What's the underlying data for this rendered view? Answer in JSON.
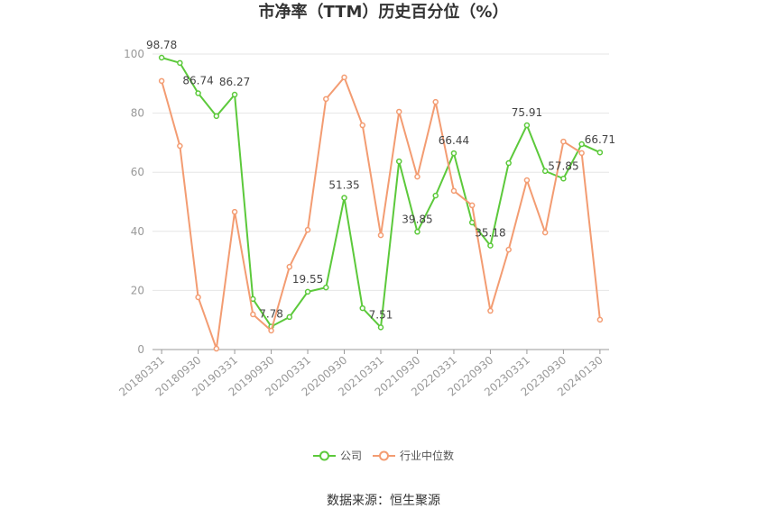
{
  "chart_data": {
    "type": "line",
    "title": "市净率（TTM）历史百分位（%）",
    "xlabel": "",
    "ylabel": "",
    "ylim": [
      0,
      100
    ],
    "yticks": [
      0,
      20,
      40,
      60,
      80,
      100
    ],
    "grid": true,
    "legend": "bottom-center",
    "categories": [
      "20180331",
      "",
      "20180930",
      "",
      "20190331",
      "",
      "20190930",
      "",
      "20200331",
      "",
      "20200930",
      "",
      "20210331",
      "",
      "20210930",
      "",
      "20220331",
      "",
      "20220930",
      "",
      "20230331",
      "",
      "20230930",
      "",
      "20240130"
    ],
    "series": [
      {
        "name": "公司",
        "color": "#5cc93b",
        "values": [
          98.78,
          97.0,
          86.74,
          79.0,
          86.27,
          17.1,
          7.78,
          11.0,
          19.55,
          21.0,
          51.35,
          14.0,
          7.51,
          63.7,
          39.85,
          52.1,
          66.44,
          43.0,
          35.18,
          63.1,
          75.91,
          60.4,
          57.85,
          69.5,
          66.71
        ],
        "data_labels": [
          "98.78",
          "",
          "86.74",
          "",
          "86.27",
          "",
          "7.78",
          "",
          "19.55",
          "",
          "51.35",
          "",
          "7.51",
          "",
          "39.85",
          "",
          "66.44",
          "",
          "35.18",
          "",
          "75.91",
          "",
          "57.85",
          "",
          "66.71"
        ]
      },
      {
        "name": "行业中位数",
        "color": "#f39c72",
        "values": [
          90.9,
          68.9,
          17.7,
          0.3,
          46.6,
          11.9,
          6.4,
          28.0,
          40.5,
          84.8,
          92.1,
          75.9,
          38.7,
          80.5,
          58.5,
          83.8,
          53.7,
          48.8,
          13.1,
          33.8,
          57.3,
          39.6,
          70.4,
          66.5,
          10.1
        ]
      }
    ]
  },
  "source": "数据来源：恒生聚源"
}
